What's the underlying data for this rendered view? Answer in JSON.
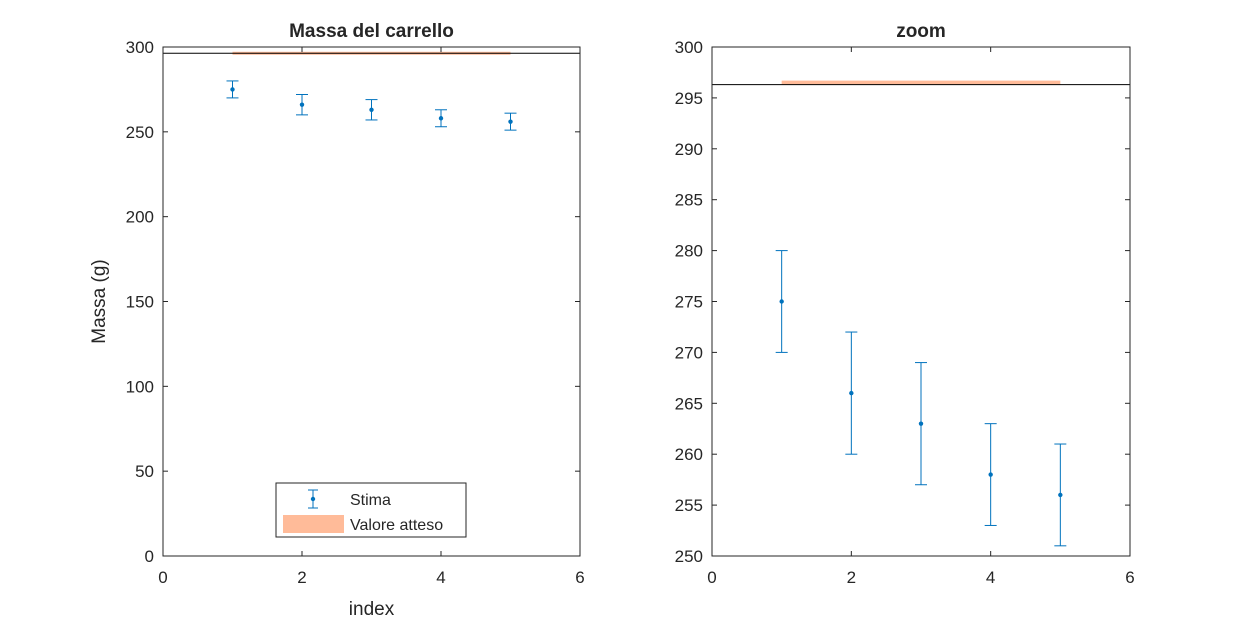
{
  "colors": {
    "series": "#0072BD",
    "expected_band": "#FFBB99",
    "axis": "#262626",
    "reference_line": "#000000"
  },
  "chart_data": [
    {
      "type": "scatter",
      "title": "Massa del carrello",
      "xlabel": "index",
      "ylabel": "Massa (g)",
      "xlim": [
        0,
        6
      ],
      "ylim": [
        0,
        300
      ],
      "x_ticks": [
        "0",
        "2",
        "4",
        "6"
      ],
      "y_ticks": [
        "0",
        "50",
        "100",
        "150",
        "200",
        "250",
        "300"
      ],
      "grid": false,
      "series": [
        {
          "name": "Stima",
          "type": "errorbar",
          "x": [
            1,
            2,
            3,
            4,
            5
          ],
          "y": [
            275,
            266,
            263,
            258,
            256
          ],
          "error": [
            5,
            6,
            6,
            5,
            5
          ]
        },
        {
          "name": "Valore atteso",
          "type": "band",
          "x": [
            1,
            5
          ],
          "y_low": 296.3,
          "y_high": 296.6
        }
      ],
      "reference_line_y": 296.3,
      "legend": {
        "placement": "bottom-center",
        "entries": [
          "Stima",
          "Valore atteso"
        ]
      }
    },
    {
      "type": "scatter",
      "title": "zoom",
      "xlabel": "",
      "ylabel": "",
      "xlim": [
        0,
        6
      ],
      "ylim": [
        250,
        300
      ],
      "x_ticks": [
        "0",
        "2",
        "4",
        "6"
      ],
      "y_ticks": [
        "250",
        "255",
        "260",
        "265",
        "270",
        "275",
        "280",
        "285",
        "290",
        "295",
        "300"
      ],
      "grid": false,
      "series": [
        {
          "type": "errorbar",
          "x": [
            1,
            2,
            3,
            4,
            5
          ],
          "y": [
            275,
            266,
            263,
            258,
            256
          ],
          "error": [
            5,
            6,
            6,
            5,
            5
          ]
        },
        {
          "type": "band",
          "x": [
            1,
            5
          ],
          "y_low": 296.3,
          "y_high": 296.6
        }
      ],
      "reference_line_y": 296.3
    }
  ]
}
